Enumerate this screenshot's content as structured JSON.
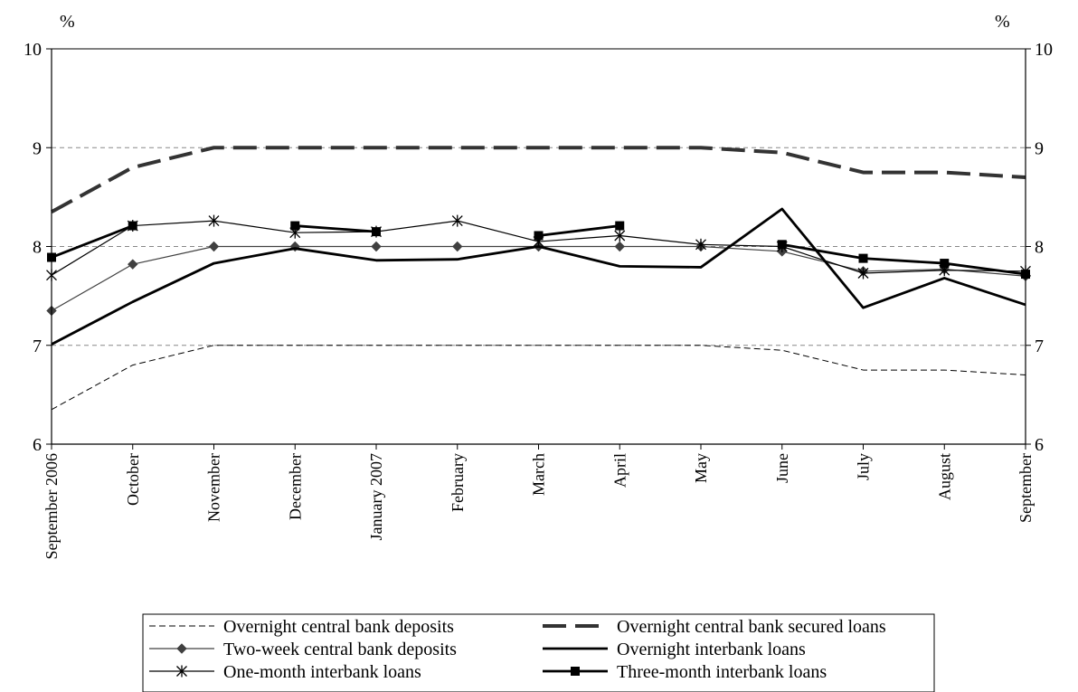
{
  "chart_data": {
    "type": "line",
    "y_unit_left": "%",
    "y_unit_right": "%",
    "ylim": [
      6,
      10
    ],
    "yticks": [
      6,
      7,
      8,
      9,
      10
    ],
    "grid": "horizontal dashed at 7, 8, 9",
    "legend_position": "bottom",
    "categories": [
      "September 2006",
      "October",
      "November",
      "December",
      "January 2007",
      "February",
      "March",
      "April",
      "May",
      "June",
      "July",
      "August",
      "September"
    ],
    "series": [
      {
        "name": "Overnight central bank deposits",
        "style": "thin-dashed",
        "color": "#000000",
        "values": [
          6.35,
          6.8,
          7.0,
          7.0,
          7.0,
          7.0,
          7.0,
          7.0,
          7.0,
          6.95,
          6.75,
          6.75,
          6.7
        ]
      },
      {
        "name": "Overnight central bank secured loans",
        "style": "thick-dashed",
        "color": "#333333",
        "values": [
          8.35,
          8.8,
          9.0,
          9.0,
          9.0,
          9.0,
          9.0,
          9.0,
          9.0,
          8.95,
          8.75,
          8.75,
          8.7
        ]
      },
      {
        "name": "Two-week central bank deposits",
        "style": "diamond",
        "color": "#404040",
        "values": [
          7.35,
          7.82,
          8.0,
          8.0,
          8.0,
          8.0,
          8.0,
          8.0,
          8.0,
          7.95,
          7.75,
          7.77,
          7.7
        ]
      },
      {
        "name": "Overnight interbank loans",
        "style": "thick-solid",
        "color": "#000000",
        "values": [
          7.01,
          7.44,
          7.83,
          7.98,
          7.86,
          7.87,
          8.0,
          7.8,
          7.79,
          8.38,
          7.38,
          7.68,
          7.41
        ]
      },
      {
        "name": "One-month interbank loans",
        "style": "star",
        "color": "#000000",
        "values": [
          7.71,
          8.21,
          8.26,
          8.14,
          8.15,
          8.26,
          8.05,
          8.11,
          8.02,
          8.0,
          7.73,
          7.76,
          7.75
        ]
      },
      {
        "name": "Three-month interbank loans",
        "style": "square",
        "color": "#000000",
        "values": [
          7.89,
          8.21,
          null,
          8.21,
          8.15,
          null,
          8.11,
          8.21,
          null,
          8.02,
          7.88,
          7.83,
          7.72
        ]
      }
    ]
  }
}
